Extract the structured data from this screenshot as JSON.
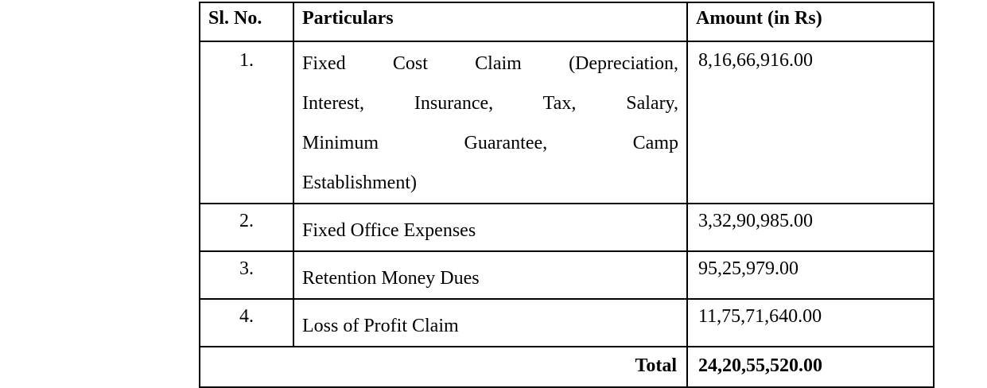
{
  "table": {
    "headers": [
      "Sl. No.",
      "Particulars",
      "Amount (in Rs)"
    ],
    "rows": [
      {
        "sl": "1.",
        "particulars_lines": [
          "Fixed Cost Claim (Depreciation,",
          "Interest, Insurance, Tax, Salary,",
          "Minimum Guarantee, Camp",
          "Establishment)"
        ],
        "amount": "8,16,66,916.00"
      },
      {
        "sl": "2.",
        "particulars_lines": [
          "Fixed Office Expenses"
        ],
        "amount": "3,32,90,985.00"
      },
      {
        "sl": "3.",
        "particulars_lines": [
          "Retention Money Dues"
        ],
        "amount": "95,25,979.00"
      },
      {
        "sl": "4.",
        "particulars_lines": [
          "Loss of Profit Claim"
        ],
        "amount": "11,75,71,640.00"
      }
    ],
    "footer": {
      "label": "Total",
      "amount": "24,20,55,520.00"
    }
  },
  "colors": {
    "background": "#ffffff",
    "text": "#000000",
    "border": "#000000"
  }
}
